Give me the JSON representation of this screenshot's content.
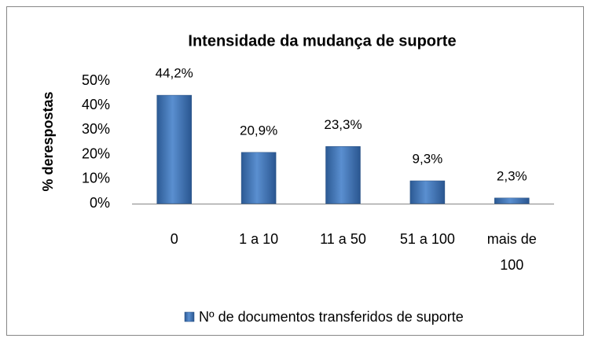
{
  "chart_data": {
    "type": "bar",
    "title": "Intensidade da mudança de suporte",
    "y_label": "% derespostas",
    "categories": [
      "0",
      "1 a 10",
      "11 a 50",
      "51 a 100",
      "mais de 100"
    ],
    "series": [
      {
        "name": "Nº de documentos transferidos de suporte",
        "color": "#4f81bd",
        "values": [
          44.2,
          20.9,
          23.3,
          9.3,
          2.3
        ],
        "value_labels": [
          "44,2%",
          "20,9%",
          "23,3%",
          "9,3%",
          "2,3%"
        ]
      }
    ],
    "ylim": [
      0,
      50
    ],
    "yticks": [
      {
        "value": 0,
        "label": "0%"
      },
      {
        "value": 10,
        "label": "10%"
      },
      {
        "value": 20,
        "label": "20%"
      },
      {
        "value": 30,
        "label": "30%"
      },
      {
        "value": 40,
        "label": "40%"
      },
      {
        "value": 50,
        "label": "50%"
      }
    ],
    "grid": false,
    "legend": "bottom"
  }
}
